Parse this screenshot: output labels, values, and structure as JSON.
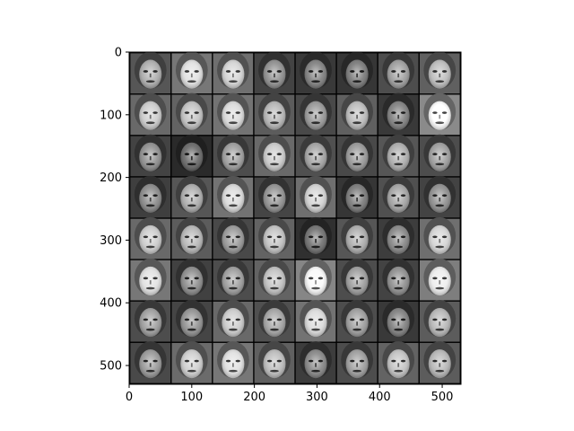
{
  "chart_data": {
    "type": "heatmap",
    "title": "",
    "xlabel": "",
    "ylabel": "",
    "colormap": "gray",
    "xlim": [
      0,
      530
    ],
    "ylim": [
      530,
      0
    ],
    "xticks": [
      0,
      100,
      200,
      300,
      400,
      500
    ],
    "yticks": [
      0,
      100,
      200,
      300,
      400,
      500
    ],
    "grid": {
      "rows": 8,
      "cols": 8,
      "tile_size": 64,
      "separator": 2
    },
    "tile_tones": [
      [
        0.45,
        0.62,
        0.58,
        0.35,
        0.3,
        0.28,
        0.4,
        0.5
      ],
      [
        0.55,
        0.52,
        0.6,
        0.48,
        0.38,
        0.5,
        0.3,
        0.72
      ],
      [
        0.35,
        0.22,
        0.4,
        0.55,
        0.42,
        0.38,
        0.45,
        0.4
      ],
      [
        0.33,
        0.45,
        0.6,
        0.36,
        0.58,
        0.28,
        0.42,
        0.35
      ],
      [
        0.55,
        0.48,
        0.38,
        0.52,
        0.25,
        0.45,
        0.32,
        0.58
      ],
      [
        0.62,
        0.34,
        0.4,
        0.52,
        0.7,
        0.4,
        0.35,
        0.66
      ],
      [
        0.4,
        0.36,
        0.55,
        0.42,
        0.6,
        0.4,
        0.3,
        0.48
      ],
      [
        0.38,
        0.56,
        0.62,
        0.5,
        0.32,
        0.4,
        0.52,
        0.48
      ]
    ],
    "colors": {
      "background": "#ffffff",
      "axis": "#000000",
      "separator": "#000000"
    }
  }
}
